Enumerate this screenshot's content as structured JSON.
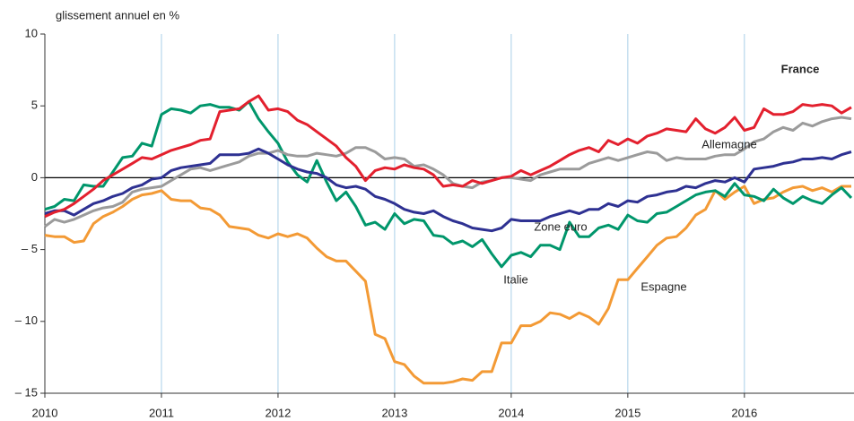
{
  "chart_data": {
    "type": "line",
    "y_label": "glissement annuel en %",
    "x": [
      2010,
      2010.083,
      2010.167,
      2010.25,
      2010.333,
      2010.417,
      2010.5,
      2010.583,
      2010.667,
      2010.75,
      2010.833,
      2010.917,
      2011,
      2011.083,
      2011.167,
      2011.25,
      2011.333,
      2011.417,
      2011.5,
      2011.583,
      2011.667,
      2011.75,
      2011.833,
      2011.917,
      2012,
      2012.083,
      2012.167,
      2012.25,
      2012.333,
      2012.417,
      2012.5,
      2012.583,
      2012.667,
      2012.75,
      2012.833,
      2012.917,
      2013,
      2013.083,
      2013.167,
      2013.25,
      2013.333,
      2013.417,
      2013.5,
      2013.583,
      2013.667,
      2013.75,
      2013.833,
      2013.917,
      2014,
      2014.083,
      2014.167,
      2014.25,
      2014.333,
      2014.417,
      2014.5,
      2014.583,
      2014.667,
      2014.75,
      2014.833,
      2014.917,
      2015,
      2015.083,
      2015.167,
      2015.25,
      2015.333,
      2015.417,
      2015.5,
      2015.583,
      2015.667,
      2015.75,
      2015.833,
      2015.917,
      2016,
      2016.083,
      2016.167,
      2016.25,
      2016.333,
      2016.417,
      2016.5,
      2016.583,
      2016.667,
      2016.75,
      2016.833,
      2016.917
    ],
    "series": [
      {
        "name": "Espagne",
        "color": "#f39a35",
        "values": [
          -4.0,
          -4.1,
          -4.1,
          -4.5,
          -4.4,
          -3.2,
          -2.7,
          -2.4,
          -2.0,
          -1.5,
          -1.2,
          -1.1,
          -0.9,
          -1.5,
          -1.6,
          -1.6,
          -2.1,
          -2.2,
          -2.6,
          -3.4,
          -3.5,
          -3.6,
          -4.0,
          -4.2,
          -3.9,
          -4.1,
          -3.9,
          -4.2,
          -4.9,
          -5.5,
          -5.8,
          -5.8,
          -6.5,
          -7.2,
          -10.9,
          -11.2,
          -12.8,
          -13.0,
          -13.8,
          -14.3,
          -14.3,
          -14.3,
          -14.2,
          -14.0,
          -14.1,
          -13.5,
          -13.5,
          -11.5,
          -11.5,
          -10.3,
          -10.3,
          -10.0,
          -9.4,
          -9.5,
          -9.8,
          -9.4,
          -9.7,
          -10.2,
          -9.1,
          -7.1,
          -7.1,
          -6.3,
          -5.5,
          -4.7,
          -4.2,
          -4.1,
          -3.5,
          -2.6,
          -2.2,
          -0.9,
          -1.5,
          -1.0,
          -0.6,
          -1.8,
          -1.5,
          -1.4,
          -1.0,
          -0.7,
          -0.6,
          -0.9,
          -0.7,
          -1.0,
          -0.6,
          -0.6
        ]
      },
      {
        "name": "Italie",
        "color": "#00966b",
        "values": [
          -2.2,
          -2.0,
          -1.5,
          -1.6,
          -0.5,
          -0.6,
          -0.6,
          0.4,
          1.4,
          1.5,
          2.4,
          2.2,
          4.4,
          4.8,
          4.7,
          4.5,
          5.0,
          5.1,
          4.9,
          4.9,
          4.7,
          5.3,
          4.1,
          3.2,
          2.4,
          1.1,
          0.2,
          -0.3,
          1.2,
          -0.3,
          -1.6,
          -1.0,
          -2.0,
          -3.3,
          -3.1,
          -3.6,
          -2.5,
          -3.2,
          -2.9,
          -3.0,
          -4.0,
          -4.1,
          -4.6,
          -4.4,
          -4.8,
          -4.3,
          -5.3,
          -6.2,
          -5.4,
          -5.2,
          -5.5,
          -4.7,
          -4.7,
          -5.0,
          -3.1,
          -4.1,
          -4.1,
          -3.5,
          -3.3,
          -3.6,
          -2.6,
          -3.0,
          -3.1,
          -2.5,
          -2.4,
          -2.0,
          -1.6,
          -1.2,
          -1.0,
          -0.9,
          -1.3,
          -0.4,
          -1.2,
          -1.3,
          -1.6,
          -0.8,
          -1.4,
          -1.8,
          -1.3,
          -1.6,
          -1.8,
          -1.2,
          -0.7,
          -1.4
        ]
      },
      {
        "name": "Allemagne",
        "color": "#9b9b9b",
        "values": [
          -3.4,
          -2.9,
          -3.1,
          -2.9,
          -2.6,
          -2.3,
          -2.1,
          -2.0,
          -1.7,
          -1.0,
          -0.8,
          -0.7,
          -0.6,
          -0.2,
          0.2,
          0.6,
          0.7,
          0.5,
          0.7,
          0.9,
          1.1,
          1.5,
          1.7,
          1.7,
          1.9,
          1.6,
          1.5,
          1.5,
          1.7,
          1.6,
          1.5,
          1.7,
          2.1,
          2.1,
          1.8,
          1.3,
          1.4,
          1.3,
          0.8,
          0.9,
          0.6,
          0.2,
          -0.4,
          -0.6,
          -0.7,
          -0.3,
          -0.2,
          0.0,
          0.0,
          -0.1,
          -0.2,
          0.2,
          0.4,
          0.6,
          0.6,
          0.6,
          1.0,
          1.2,
          1.4,
          1.2,
          1.4,
          1.6,
          1.8,
          1.7,
          1.2,
          1.4,
          1.3,
          1.3,
          1.3,
          1.5,
          1.6,
          1.6,
          2.0,
          2.5,
          2.7,
          3.2,
          3.5,
          3.3,
          3.8,
          3.6,
          3.9,
          4.1,
          4.2,
          4.1
        ]
      },
      {
        "name": "Zone euro",
        "color": "#2e3192",
        "values": [
          -2.5,
          -2.3,
          -2.3,
          -2.6,
          -2.2,
          -1.8,
          -1.6,
          -1.3,
          -1.1,
          -0.7,
          -0.5,
          -0.1,
          0.0,
          0.5,
          0.7,
          0.8,
          0.9,
          1.0,
          1.6,
          1.6,
          1.6,
          1.7,
          2.0,
          1.7,
          1.3,
          0.9,
          0.6,
          0.4,
          0.3,
          0.0,
          -0.5,
          -0.7,
          -0.6,
          -0.8,
          -1.3,
          -1.5,
          -1.8,
          -2.2,
          -2.4,
          -2.5,
          -2.3,
          -2.7,
          -3.0,
          -3.2,
          -3.5,
          -3.6,
          -3.7,
          -3.5,
          -2.9,
          -3.0,
          -3.0,
          -3.0,
          -2.7,
          -2.5,
          -2.3,
          -2.5,
          -2.2,
          -2.2,
          -1.8,
          -2.0,
          -1.6,
          -1.7,
          -1.3,
          -1.2,
          -1.0,
          -0.9,
          -0.6,
          -0.7,
          -0.4,
          -0.2,
          -0.3,
          0.0,
          -0.3,
          0.6,
          0.7,
          0.8,
          1.0,
          1.1,
          1.3,
          1.3,
          1.4,
          1.3,
          1.6,
          1.8
        ]
      },
      {
        "name": "France",
        "color": "#e3202e",
        "values": [
          -2.7,
          -2.4,
          -2.2,
          -1.8,
          -1.3,
          -0.8,
          -0.2,
          0.2,
          0.6,
          1.0,
          1.4,
          1.3,
          1.6,
          1.9,
          2.1,
          2.3,
          2.6,
          2.7,
          4.6,
          4.7,
          4.8,
          5.3,
          5.7,
          4.7,
          4.8,
          4.6,
          4.0,
          3.7,
          3.2,
          2.7,
          2.2,
          1.4,
          0.8,
          -0.2,
          0.5,
          0.7,
          0.6,
          0.9,
          0.7,
          0.6,
          0.2,
          -0.6,
          -0.5,
          -0.6,
          -0.2,
          -0.4,
          -0.2,
          0.0,
          0.1,
          0.5,
          0.2,
          0.5,
          0.8,
          1.2,
          1.6,
          1.9,
          2.1,
          1.8,
          2.6,
          2.3,
          2.7,
          2.4,
          2.9,
          3.1,
          3.4,
          3.3,
          3.2,
          4.1,
          3.4,
          3.1,
          3.5,
          4.2,
          3.3,
          3.5,
          4.8,
          4.4,
          4.4,
          4.6,
          5.1,
          5.0,
          5.1,
          5.0,
          4.5,
          4.9
        ]
      }
    ],
    "xlim": [
      2010,
      2016.94
    ],
    "xticks": [
      2010,
      2011,
      2012,
      2013,
      2014,
      2015,
      2016
    ],
    "ylim": [
      -15,
      10
    ],
    "yticks": [
      {
        "value": -15,
        "label": "– 15"
      },
      {
        "value": -10,
        "label": "– 10"
      },
      {
        "value": -5,
        "label": "– 5"
      },
      0,
      5,
      10
    ],
    "grid": "x"
  }
}
